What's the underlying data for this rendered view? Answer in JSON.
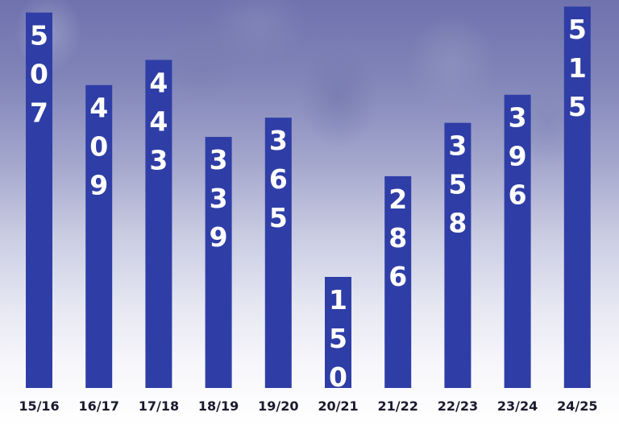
{
  "chart_data": {
    "type": "bar",
    "categories": [
      "15/16",
      "16/17",
      "17/18",
      "18/19",
      "19/20",
      "20/21",
      "21/22",
      "22/23",
      "23/24",
      "24/25"
    ],
    "values": [
      507,
      409,
      443,
      339,
      365,
      150,
      286,
      358,
      396,
      515
    ],
    "title": "",
    "xlabel": "",
    "ylabel": "",
    "ylim": [
      0,
      520
    ],
    "grid": false,
    "data_labels": "vertical inside top of bar",
    "colors": {
      "bar": "#2f3ea6",
      "label_text": "#ffffff",
      "category_text": "#1a1a2e"
    }
  }
}
